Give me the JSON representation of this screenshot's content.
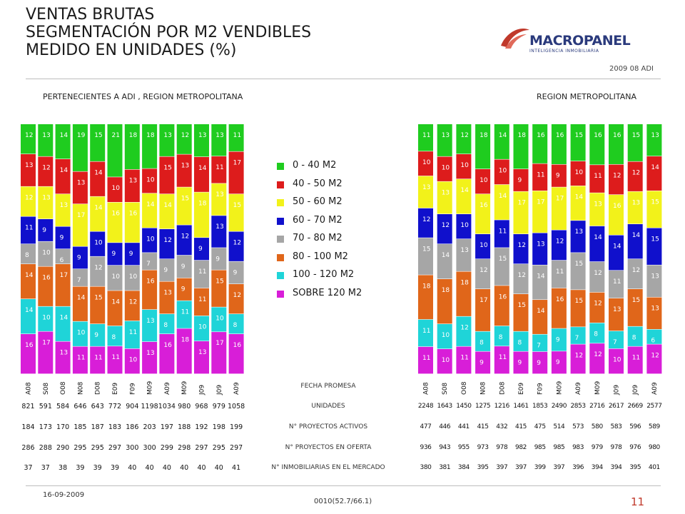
{
  "title": {
    "line1": "VENTAS BRUTAS",
    "line2": "SEGMENTACIÓN POR M2 VENDIBLES",
    "line3": "MEDIDO EN UNIDADES (%)"
  },
  "logo": {
    "name": "MACROPANEL",
    "tagline": "INTELIGENCIA INMOBILIARIA"
  },
  "date_tag": "2009 08 ADI",
  "colors": {
    "s0_40": "#1fcc1f",
    "s40_50": "#dd1c1c",
    "s50_60": "#f2f21a",
    "s60_70": "#1010cc",
    "s70_80": "#a6a6a6",
    "s80_100": "#e0661a",
    "s100_120": "#1fd4d8",
    "s120": "#d81ed8"
  },
  "legend": [
    "0 - 40 M2",
    "40 - 50 M2",
    "50 - 60 M2",
    "60 - 70 M2",
    "70 - 80 M2",
    "80 - 100 M2",
    "100 - 120 M2",
    "SOBRE 120 M2"
  ],
  "rows": {
    "fecha": "FECHA PROMESA",
    "unidades": "UNIDADES",
    "activos": "N° PROYECTOS ACTIVOS",
    "oferta": "N° PROYECTOS EN OFERTA",
    "inmobiliarias": "N° INMOBILIARIAS EN EL MERCADO"
  },
  "chart_data": [
    {
      "type": "bar",
      "stacked": true,
      "title": "PERTENECIENTES A ADI , REGION METROPOLITANA",
      "categories": [
        "A08",
        "S08",
        "O08",
        "N08",
        "D08",
        "E09",
        "F09",
        "M09",
        "A09",
        "M09",
        "J09",
        "J09",
        "A09"
      ],
      "series": [
        {
          "name": "SOBRE 120 M2",
          "values": [
            16,
            17,
            13,
            11,
            11,
            11,
            10,
            13,
            16,
            18,
            13,
            17,
            16
          ]
        },
        {
          "name": "100 - 120 M2",
          "values": [
            14,
            10,
            14,
            10,
            9,
            8,
            11,
            13,
            8,
            11,
            10,
            10,
            8
          ]
        },
        {
          "name": "80 - 100 M2",
          "values": [
            14,
            16,
            17,
            14,
            15,
            14,
            12,
            16,
            13,
            9,
            11,
            15,
            12
          ]
        },
        {
          "name": "70 - 80 M2",
          "values": [
            8,
            10,
            6,
            7,
            12,
            10,
            10,
            7,
            9,
            9,
            11,
            9,
            9
          ]
        },
        {
          "name": "60 - 70 M2",
          "values": [
            11,
            9,
            9,
            9,
            10,
            9,
            9,
            10,
            12,
            12,
            9,
            13,
            12
          ]
        },
        {
          "name": "50 - 60 M2",
          "values": [
            12,
            13,
            13,
            17,
            14,
            16,
            16,
            14,
            14,
            15,
            18,
            13,
            15
          ]
        },
        {
          "name": "40 - 50 M2",
          "values": [
            13,
            12,
            14,
            13,
            14,
            10,
            13,
            10,
            15,
            13,
            14,
            11,
            17
          ]
        },
        {
          "name": "0 - 40 M2",
          "values": [
            12,
            13,
            14,
            19,
            15,
            21,
            18,
            18,
            13,
            12,
            13,
            13,
            11
          ]
        }
      ],
      "unidades": [
        "821",
        "591",
        "584",
        "646",
        "643",
        "772",
        "904",
        "1198",
        "1034",
        "980",
        "968",
        "979",
        "1058"
      ],
      "activos": [
        "184",
        "173",
        "170",
        "185",
        "187",
        "183",
        "186",
        "203",
        "197",
        "188",
        "192",
        "198",
        "199"
      ],
      "oferta": [
        "286",
        "288",
        "290",
        "295",
        "295",
        "297",
        "300",
        "300",
        "299",
        "298",
        "297",
        "295",
        "297"
      ],
      "inmobiliarias": [
        "37",
        "37",
        "38",
        "39",
        "39",
        "39",
        "40",
        "40",
        "40",
        "40",
        "40",
        "40",
        "41"
      ]
    },
    {
      "type": "bar",
      "stacked": true,
      "title": "REGION METROPOLITANA",
      "categories": [
        "A08",
        "S08",
        "O08",
        "N08",
        "D08",
        "E09",
        "F09",
        "M09",
        "A09",
        "M09",
        "J09",
        "J09",
        "A09"
      ],
      "series": [
        {
          "name": "SOBRE 120 M2",
          "values": [
            11,
            10,
            11,
            9,
            11,
            9,
            9,
            9,
            12,
            12,
            10,
            11,
            12
          ]
        },
        {
          "name": "100 - 120 M2",
          "values": [
            11,
            10,
            12,
            8,
            8,
            8,
            7,
            9,
            7,
            8,
            7,
            8,
            6
          ]
        },
        {
          "name": "80 - 100 M2",
          "values": [
            18,
            18,
            18,
            17,
            16,
            15,
            14,
            16,
            15,
            12,
            13,
            15,
            13
          ]
        },
        {
          "name": "70 - 80 M2",
          "values": [
            15,
            14,
            13,
            12,
            15,
            12,
            14,
            11,
            15,
            12,
            11,
            12,
            13
          ]
        },
        {
          "name": "60 - 70 M2",
          "values": [
            12,
            12,
            10,
            10,
            11,
            12,
            13,
            12,
            13,
            14,
            14,
            14,
            15
          ]
        },
        {
          "name": "50 - 60 M2",
          "values": [
            13,
            13,
            14,
            16,
            14,
            17,
            17,
            17,
            14,
            13,
            16,
            13,
            15
          ]
        },
        {
          "name": "40 - 50 M2",
          "values": [
            10,
            10,
            10,
            10,
            10,
            9,
            11,
            9,
            10,
            11,
            12,
            12,
            14
          ]
        },
        {
          "name": "0 - 40 M2",
          "values": [
            11,
            13,
            12,
            18,
            14,
            18,
            16,
            16,
            15,
            16,
            16,
            15,
            13
          ]
        }
      ],
      "unidades": [
        "2248",
        "1643",
        "1450",
        "1275",
        "1216",
        "1461",
        "1853",
        "2490",
        "2853",
        "2716",
        "2617",
        "2669",
        "2577"
      ],
      "activos": [
        "477",
        "446",
        "441",
        "415",
        "432",
        "415",
        "475",
        "514",
        "573",
        "580",
        "583",
        "596",
        "589"
      ],
      "oferta": [
        "936",
        "943",
        "955",
        "973",
        "978",
        "982",
        "985",
        "985",
        "983",
        "979",
        "978",
        "976",
        "980"
      ],
      "inmobiliarias": [
        "380",
        "381",
        "384",
        "395",
        "397",
        "397",
        "399",
        "397",
        "396",
        "394",
        "394",
        "395",
        "401"
      ]
    }
  ],
  "footer": {
    "date": "16-09-2009",
    "code": "0010(52.7/66.1)",
    "page": "11"
  }
}
